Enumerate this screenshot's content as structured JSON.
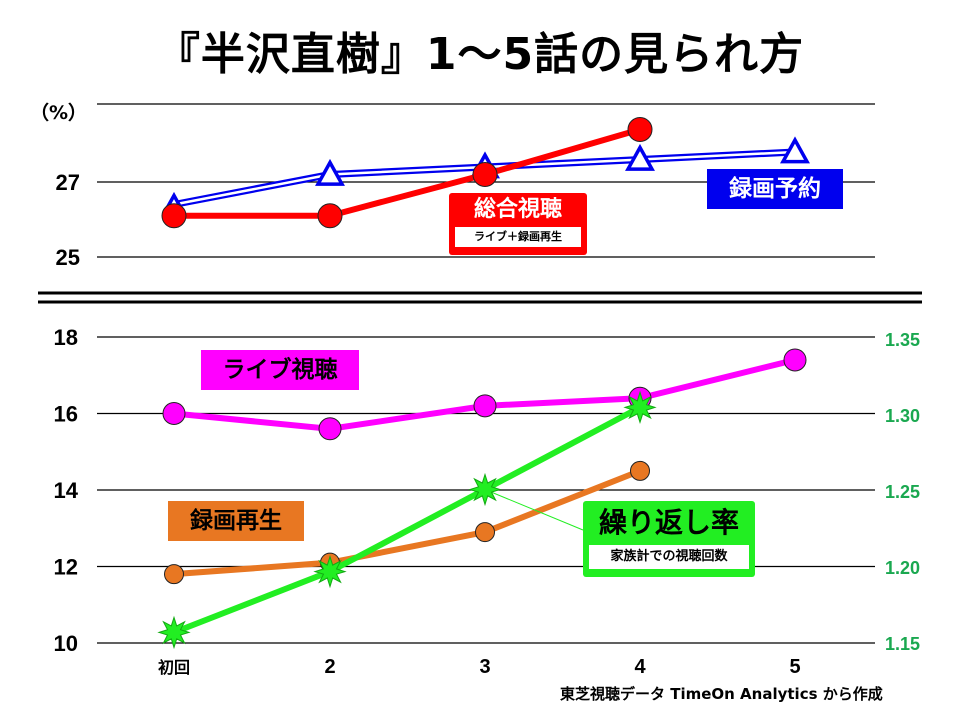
{
  "title": "『半沢直樹』1〜5話の見られ方",
  "source": "東芝視聴データ TimeOn Analytics から作成",
  "chart_data": [
    {
      "type": "line",
      "name": "top",
      "ylabel": "（%）",
      "ylim": [
        25,
        29
      ],
      "yticks": [
        25,
        27
      ],
      "ytick_labels": [
        "25",
        "27"
      ],
      "categories": [
        "初回",
        "2",
        "3",
        "4",
        "5"
      ],
      "grid": true,
      "series": [
        {
          "name": "録画予約",
          "color": "#0000ee",
          "marker": "triangle",
          "values": [
            26.4,
            27.2,
            27.4,
            27.6,
            27.8
          ]
        },
        {
          "name": "総合視聴",
          "sublabel": "ライブ＋録画再生",
          "color": "#ff0000",
          "marker": "circle",
          "values": [
            26.1,
            26.1,
            27.2,
            28.4,
            null
          ]
        }
      ]
    },
    {
      "type": "line",
      "name": "bottom",
      "ylim": [
        10,
        18
      ],
      "yticks": [
        10,
        12,
        14,
        16,
        18
      ],
      "ytick_labels": [
        "10",
        "12",
        "14",
        "16",
        "18"
      ],
      "y2lim": [
        1.15,
        1.35
      ],
      "y2ticks": [
        1.15,
        1.2,
        1.25,
        1.3,
        1.35
      ],
      "y2tick_labels": [
        "1.15",
        "1.20",
        "1.25",
        "1.30",
        "1.35"
      ],
      "categories": [
        "初回",
        "2",
        "3",
        "4",
        "5"
      ],
      "grid": true,
      "series": [
        {
          "name": "ライブ視聴",
          "color": "#ff00ff",
          "marker": "circle",
          "axis": "left",
          "values": [
            16.0,
            15.6,
            16.2,
            16.4,
            17.4
          ]
        },
        {
          "name": "録画再生",
          "color": "#e87722",
          "marker": "circle",
          "axis": "left",
          "values": [
            11.8,
            12.1,
            12.9,
            14.5,
            null
          ]
        },
        {
          "name": "繰り返し率",
          "sublabel": "家族計での視聴回数",
          "color": "#22ee22",
          "marker": "star",
          "axis": "right",
          "values": [
            1.157,
            1.197,
            1.251,
            1.305,
            null
          ]
        }
      ]
    }
  ],
  "colors": {
    "right_axis": "#1aa850"
  }
}
